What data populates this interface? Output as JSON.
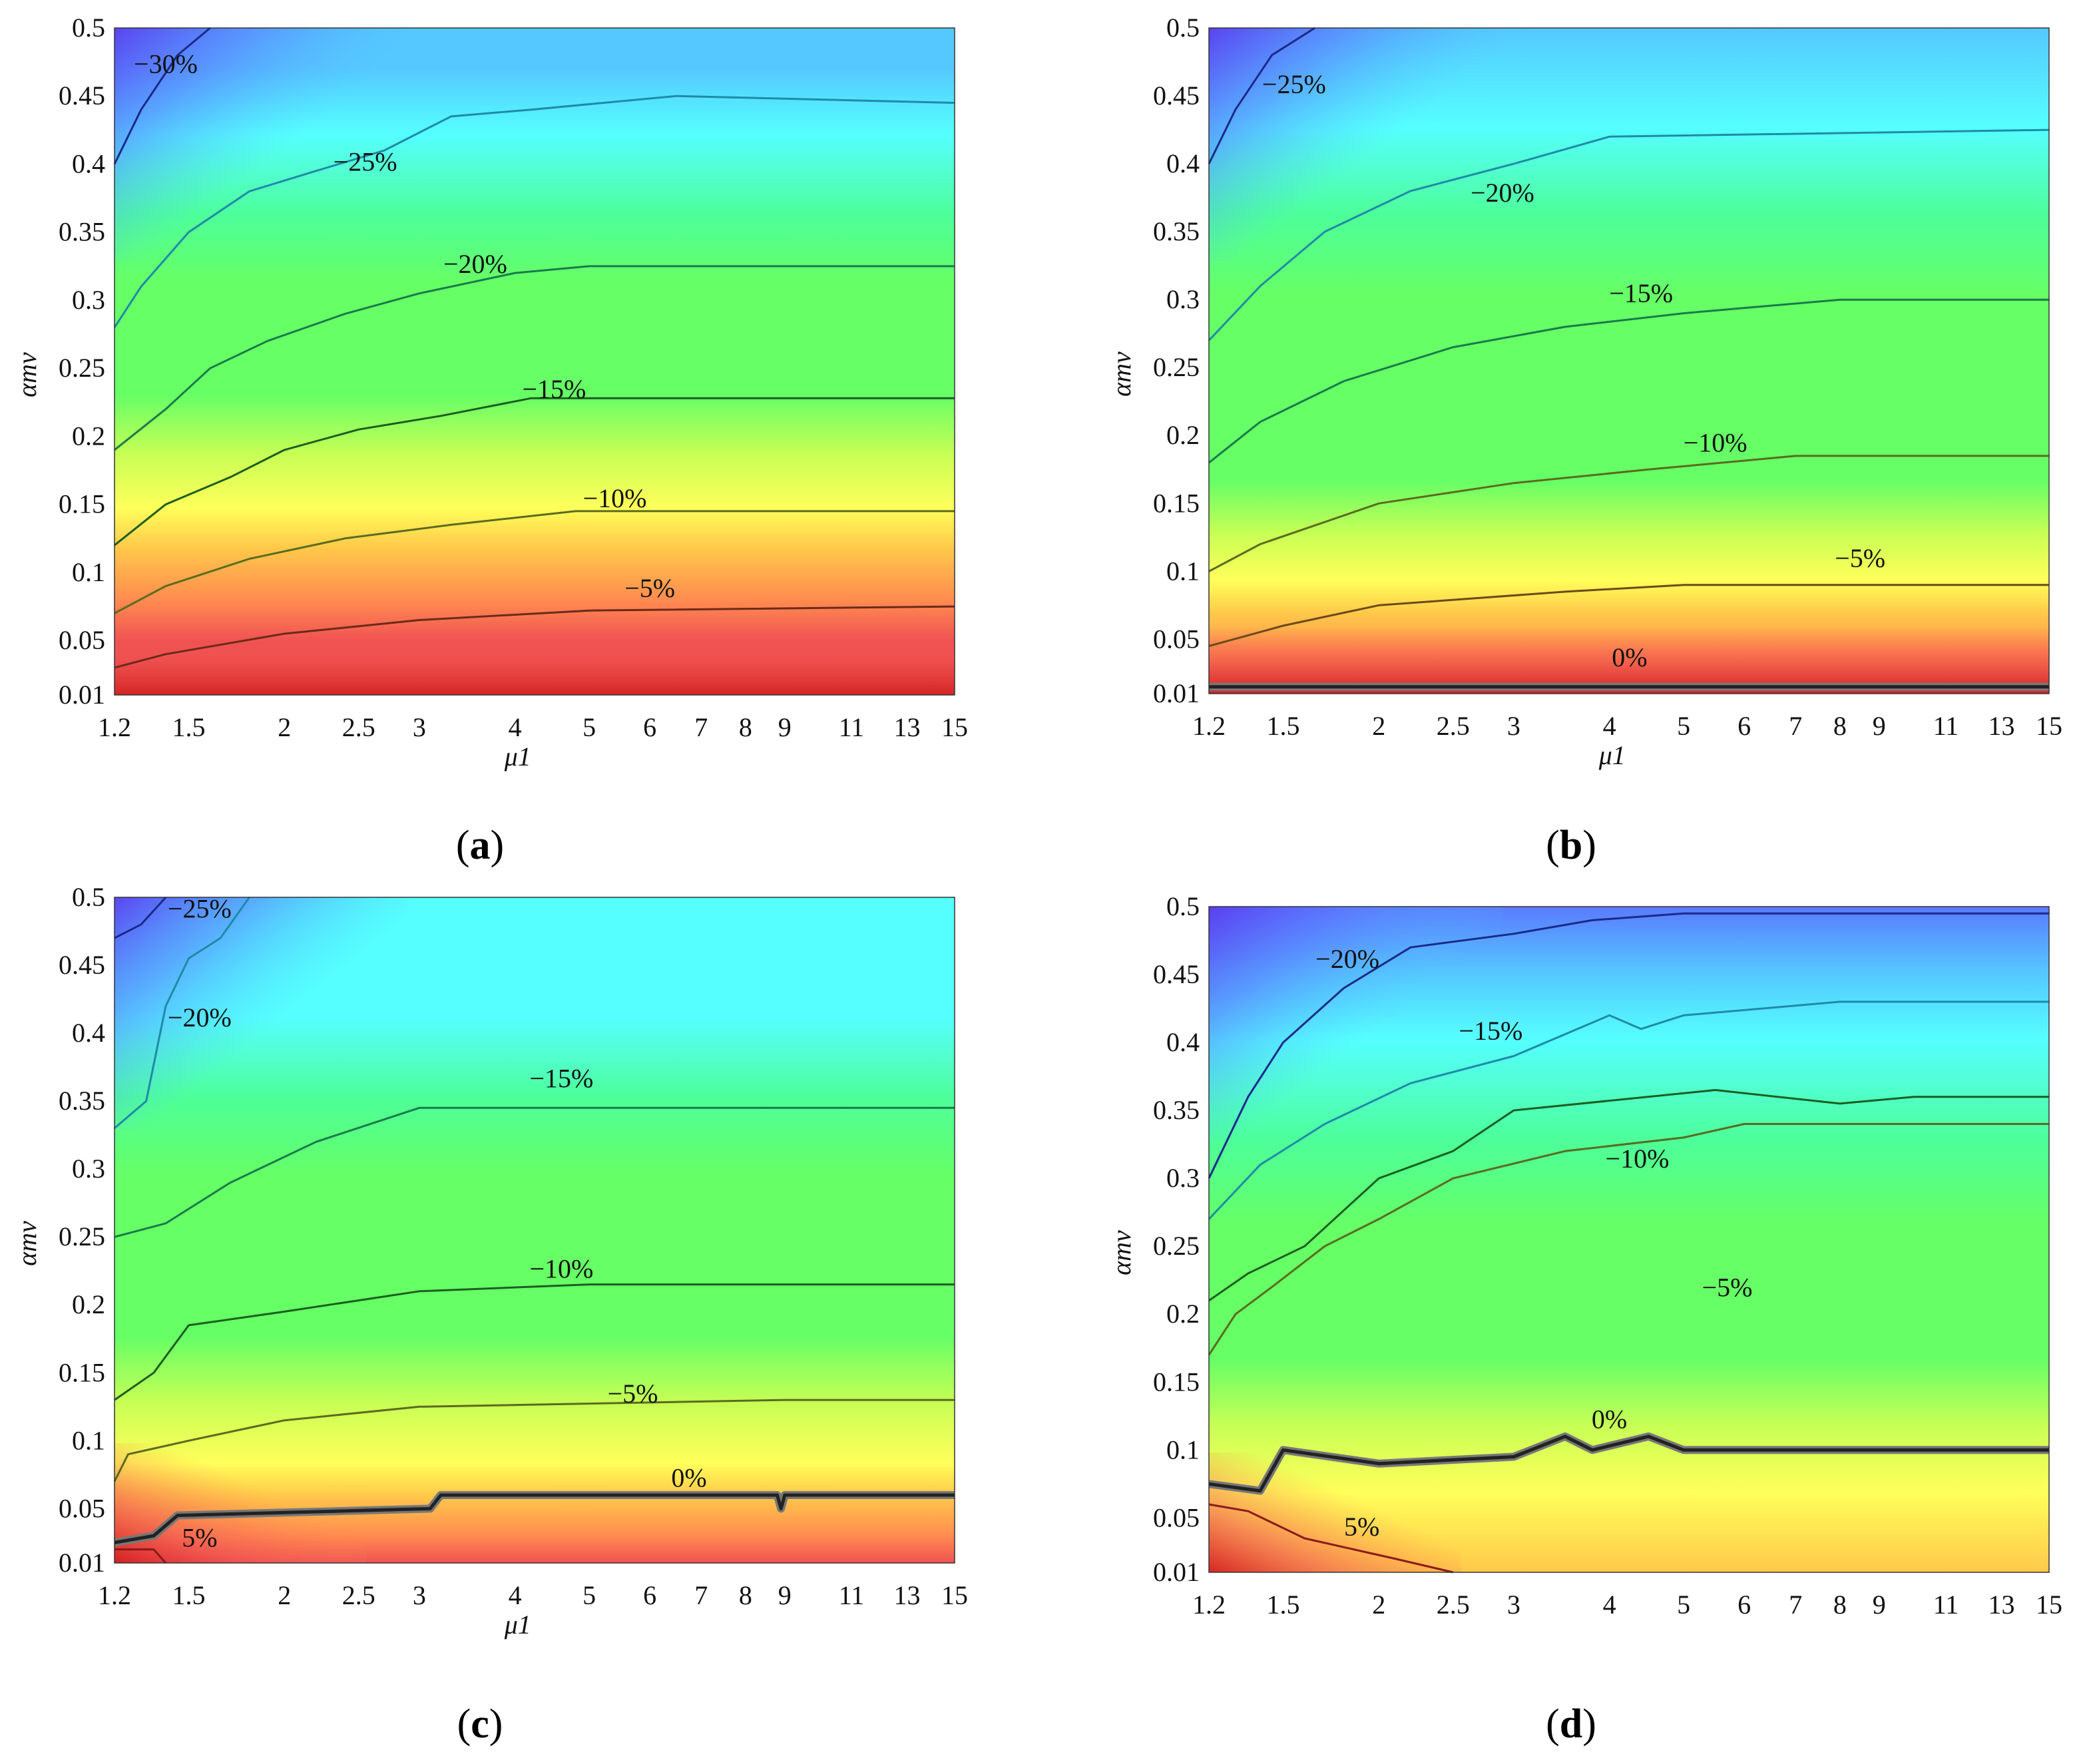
{
  "chart_data": [
    {
      "type": "heatmap",
      "panel": "a",
      "caption": {
        "open": "(",
        "letter": "a",
        "close": ")"
      },
      "xlabel": "μ1",
      "ylabel": "αmv",
      "x_ticks": [
        "1.2",
        "1.5",
        "2",
        "2.5",
        "3",
        "4",
        "5",
        "6",
        "7",
        "8",
        "9",
        "11",
        "13",
        "15"
      ],
      "y_ticks": [
        "0.01",
        "0.05",
        "0.1",
        "0.15",
        "0.2",
        "0.25",
        "0.3",
        "0.35",
        "0.4",
        "0.45",
        "0.5"
      ],
      "xlim": [
        1.2,
        15
      ],
      "ylim": [
        0.01,
        0.5
      ],
      "contours": [
        {
          "label": "−30%",
          "level": -30,
          "color": "#1b2a8a",
          "label_at": [
            1.4,
            0.467
          ],
          "points": [
            [
              1.2,
              0.4
            ],
            [
              1.3,
              0.44
            ],
            [
              1.45,
              0.48
            ],
            [
              1.6,
              0.5
            ]
          ]
        },
        {
          "label": "−25%",
          "level": -25,
          "color": "#1f8aa8",
          "label_at": [
            2.55,
            0.395
          ],
          "points": [
            [
              1.2,
              0.28
            ],
            [
              1.3,
              0.31
            ],
            [
              1.5,
              0.35
            ],
            [
              1.8,
              0.38
            ],
            [
              2.2,
              0.395
            ],
            [
              2.7,
              0.41
            ],
            [
              3.3,
              0.435
            ],
            [
              4.2,
              0.44
            ],
            [
              6.5,
              0.45
            ],
            [
              15,
              0.445
            ]
          ]
        },
        {
          "label": "−20%",
          "level": -20,
          "color": "#1a7a4a",
          "label_at": [
            3.55,
            0.32
          ],
          "points": [
            [
              1.2,
              0.19
            ],
            [
              1.4,
              0.22
            ],
            [
              1.6,
              0.25
            ],
            [
              1.9,
              0.27
            ],
            [
              2.4,
              0.29
            ],
            [
              3,
              0.305
            ],
            [
              4,
              0.32
            ],
            [
              5,
              0.325
            ],
            [
              15,
              0.325
            ]
          ]
        },
        {
          "label": "−15%",
          "level": -15,
          "color": "#1b5e20",
          "label_at": [
            4.5,
            0.228
          ],
          "points": [
            [
              1.2,
              0.12
            ],
            [
              1.4,
              0.15
            ],
            [
              1.7,
              0.17
            ],
            [
              2,
              0.19
            ],
            [
              2.5,
              0.205
            ],
            [
              3.2,
              0.215
            ],
            [
              4.2,
              0.228
            ],
            [
              15,
              0.228
            ]
          ]
        },
        {
          "label": "−10%",
          "level": -10,
          "color": "#5a6b1e",
          "label_at": [
            5.4,
            0.148
          ],
          "points": [
            [
              1.2,
              0.07
            ],
            [
              1.4,
              0.09
            ],
            [
              1.8,
              0.11
            ],
            [
              2.4,
              0.125
            ],
            [
              3.3,
              0.135
            ],
            [
              4.8,
              0.145
            ],
            [
              15,
              0.145
            ]
          ]
        },
        {
          "label": "−5%",
          "level": -5,
          "color": "#6b2a1a",
          "label_at": [
            6.0,
            0.082
          ],
          "points": [
            [
              1.2,
              0.03
            ],
            [
              1.4,
              0.04
            ],
            [
              2,
              0.055
            ],
            [
              3,
              0.065
            ],
            [
              5,
              0.072
            ],
            [
              15,
              0.075
            ]
          ]
        }
      ]
    },
    {
      "type": "heatmap",
      "panel": "b",
      "caption": {
        "open": "(",
        "letter": "b",
        "close": ")"
      },
      "xlabel": "μ1",
      "ylabel": "αmv",
      "x_ticks": [
        "1.2",
        "1.5",
        "2",
        "2.5",
        "3",
        "4",
        "5",
        "6",
        "7",
        "8",
        "9",
        "11",
        "13",
        "15"
      ],
      "y_ticks": [
        "0.01",
        "0.05",
        "0.1",
        "0.15",
        "0.2",
        "0.25",
        "0.3",
        "0.35",
        "0.4",
        "0.45",
        "0.5"
      ],
      "xlim": [
        1.2,
        15
      ],
      "ylim": [
        0.01,
        0.5
      ],
      "contours": [
        {
          "label": "−25%",
          "level": -25,
          "color": "#1b2a8a",
          "label_at": [
            1.55,
            0.452
          ],
          "points": [
            [
              1.2,
              0.4
            ],
            [
              1.3,
              0.44
            ],
            [
              1.45,
              0.48
            ],
            [
              1.65,
              0.5
            ]
          ]
        },
        {
          "label": "−20%",
          "level": -20,
          "color": "#1f8aa8",
          "label_at": [
            2.9,
            0.372
          ],
          "points": [
            [
              1.2,
              0.27
            ],
            [
              1.4,
              0.31
            ],
            [
              1.7,
              0.35
            ],
            [
              2.2,
              0.38
            ],
            [
              3,
              0.4
            ],
            [
              4,
              0.42
            ],
            [
              15,
              0.425
            ]
          ]
        },
        {
          "label": "−15%",
          "level": -15,
          "color": "#1a7a4a",
          "label_at": [
            4.4,
            0.298
          ],
          "points": [
            [
              1.2,
              0.18
            ],
            [
              1.4,
              0.21
            ],
            [
              1.8,
              0.24
            ],
            [
              2.5,
              0.265
            ],
            [
              3.5,
              0.28
            ],
            [
              5,
              0.29
            ],
            [
              8,
              0.3
            ],
            [
              15,
              0.3
            ]
          ]
        },
        {
          "label": "−10%",
          "level": -10,
          "color": "#5a6b1e",
          "label_at": [
            5.5,
            0.188
          ],
          "points": [
            [
              1.2,
              0.1
            ],
            [
              1.4,
              0.12
            ],
            [
              2,
              0.15
            ],
            [
              3,
              0.165
            ],
            [
              4.5,
              0.175
            ],
            [
              7,
              0.185
            ],
            [
              15,
              0.185
            ]
          ]
        },
        {
          "label": "−5%",
          "level": -5,
          "color": "#6b4a1a",
          "label_at": [
            8.5,
            0.103
          ],
          "points": [
            [
              1.2,
              0.045
            ],
            [
              1.5,
              0.06
            ],
            [
              2,
              0.075
            ],
            [
              3.5,
              0.085
            ],
            [
              5,
              0.09
            ],
            [
              15,
              0.09
            ]
          ]
        },
        {
          "label": "0%",
          "level": 0,
          "color": "#222222",
          "label_at": [
            4.25,
            0.03
          ],
          "points": [
            [
              1.2,
              0.015
            ],
            [
              15,
              0.015
            ]
          ]
        }
      ]
    },
    {
      "type": "heatmap",
      "panel": "c",
      "caption": {
        "open": "(",
        "letter": "c",
        "close": ")"
      },
      "xlabel": "μ1",
      "ylabel": "αmv",
      "x_ticks": [
        "1.2",
        "1.5",
        "2",
        "2.5",
        "3",
        "4",
        "5",
        "6",
        "7",
        "8",
        "9",
        "11",
        "13",
        "15"
      ],
      "y_ticks": [
        "0.01",
        "0.05",
        "0.1",
        "0.15",
        "0.2",
        "0.25",
        "0.3",
        "0.35",
        "0.4",
        "0.45",
        "0.5"
      ],
      "xlim": [
        1.2,
        15
      ],
      "ylim": [
        0.01,
        0.5
      ],
      "contours": [
        {
          "label": "−25%",
          "level": -25,
          "color": "#1b2a8a",
          "label_at": [
            1.55,
            0.485
          ],
          "points": [
            [
              1.2,
              0.47
            ],
            [
              1.3,
              0.48
            ],
            [
              1.4,
              0.5
            ]
          ]
        },
        {
          "label": "−20%",
          "level": -20,
          "color": "#1f8aa8",
          "label_at": [
            1.55,
            0.405
          ],
          "points": [
            [
              1.2,
              0.33
            ],
            [
              1.32,
              0.35
            ],
            [
              1.4,
              0.42
            ],
            [
              1.5,
              0.455
            ],
            [
              1.65,
              0.47
            ],
            [
              1.8,
              0.5
            ]
          ]
        },
        {
          "label": "−15%",
          "level": -15,
          "color": "#1a7a4a",
          "label_at": [
            4.6,
            0.36
          ],
          "points": [
            [
              1.2,
              0.25
            ],
            [
              1.4,
              0.26
            ],
            [
              1.7,
              0.29
            ],
            [
              2.2,
              0.32
            ],
            [
              3,
              0.345
            ],
            [
              15,
              0.345
            ]
          ]
        },
        {
          "label": "−10%",
          "level": -10,
          "color": "#1b5e20",
          "label_at": [
            4.6,
            0.22
          ],
          "points": [
            [
              1.2,
              0.13
            ],
            [
              1.35,
              0.15
            ],
            [
              1.5,
              0.185
            ],
            [
              2,
              0.195
            ],
            [
              3,
              0.21
            ],
            [
              5,
              0.215
            ],
            [
              15,
              0.215
            ]
          ]
        },
        {
          "label": "−5%",
          "level": -5,
          "color": "#5a6b1e",
          "label_at": [
            5.7,
            0.128
          ],
          "points": [
            [
              1.2,
              0.07
            ],
            [
              1.25,
              0.09
            ],
            [
              1.5,
              0.1
            ],
            [
              2,
              0.115
            ],
            [
              3,
              0.125
            ],
            [
              9,
              0.13
            ],
            [
              15,
              0.13
            ]
          ]
        },
        {
          "label": "0%",
          "level": 0,
          "color": "#222222",
          "label_at": [
            6.75,
            0.066
          ],
          "points": [
            [
              1.2,
              0.025
            ],
            [
              1.35,
              0.03
            ],
            [
              1.45,
              0.045
            ],
            [
              3.1,
              0.05
            ],
            [
              3.2,
              0.06
            ],
            [
              8.8,
              0.06
            ],
            [
              8.9,
              0.05
            ],
            [
              9,
              0.06
            ],
            [
              15,
              0.06
            ]
          ]
        },
        {
          "label": "5%",
          "level": 5,
          "color": "#8a1a1a",
          "label_at": [
            1.55,
            0.022
          ],
          "points": [
            [
              1.2,
              0.02
            ],
            [
              1.35,
              0.02
            ],
            [
              1.4,
              0.01
            ]
          ]
        }
      ]
    },
    {
      "type": "heatmap",
      "panel": "d",
      "caption": {
        "open": "(",
        "letter": "d",
        "close": ")"
      },
      "xlabel": "",
      "ylabel": "αmv",
      "x_ticks": [
        "1.2",
        "1.5",
        "2",
        "2.5",
        "3",
        "4",
        "5",
        "6",
        "7",
        "8",
        "9",
        "11",
        "13",
        "15"
      ],
      "y_ticks": [
        "0.01",
        "0.05",
        "0.1",
        "0.15",
        "0.2",
        "0.25",
        "0.3",
        "0.35",
        "0.4",
        "0.45",
        "0.5"
      ],
      "xlim": [
        1.2,
        15
      ],
      "ylim": [
        0.01,
        0.5
      ],
      "contours": [
        {
          "label": "−20%",
          "level": -20,
          "color": "#1b2a8a",
          "label_at": [
            1.82,
            0.455
          ],
          "points": [
            [
              1.2,
              0.3
            ],
            [
              1.35,
              0.36
            ],
            [
              1.5,
              0.4
            ],
            [
              1.8,
              0.44
            ],
            [
              2.2,
              0.47
            ],
            [
              3,
              0.48
            ],
            [
              3.8,
              0.49
            ],
            [
              5,
              0.495
            ],
            [
              15,
              0.495
            ]
          ]
        },
        {
          "label": "−15%",
          "level": -15,
          "color": "#1f8aa8",
          "label_at": [
            2.8,
            0.402
          ],
          "points": [
            [
              1.2,
              0.27
            ],
            [
              1.4,
              0.31
            ],
            [
              1.7,
              0.34
            ],
            [
              2.2,
              0.37
            ],
            [
              3,
              0.39
            ],
            [
              4,
              0.42
            ],
            [
              4.4,
              0.41
            ],
            [
              5,
              0.42
            ],
            [
              8,
              0.43
            ],
            [
              15,
              0.43
            ]
          ]
        },
        {
          "label": "−10%",
          "level": -10,
          "color": "#1b5e20",
          "label_at": [
            4.35,
            0.308
          ],
          "points": [
            [
              1.2,
              0.21
            ],
            [
              1.35,
              0.23
            ],
            [
              1.6,
              0.25
            ],
            [
              2,
              0.3
            ],
            [
              2.5,
              0.32
            ],
            [
              3,
              0.35
            ],
            [
              5.5,
              0.365
            ],
            [
              8,
              0.355
            ],
            [
              10,
              0.36
            ],
            [
              15,
              0.36
            ]
          ]
        },
        {
          "label": "−5%",
          "level": -5,
          "color": "#5a6b1e",
          "label_at": [
            5.7,
            0.213
          ],
          "points": [
            [
              1.2,
              0.17
            ],
            [
              1.3,
              0.2
            ],
            [
              1.45,
              0.22
            ],
            [
              1.7,
              0.25
            ],
            [
              2,
              0.27
            ],
            [
              2.5,
              0.3
            ],
            [
              3.5,
              0.32
            ],
            [
              5,
              0.33
            ],
            [
              6,
              0.34
            ],
            [
              15,
              0.34
            ]
          ]
        },
        {
          "label": "0%",
          "level": 0,
          "color": "#222222",
          "label_at": [
            4.0,
            0.116
          ],
          "points": [
            [
              1.2,
              0.075
            ],
            [
              1.4,
              0.07
            ],
            [
              1.5,
              0.1
            ],
            [
              2,
              0.09
            ],
            [
              3,
              0.095
            ],
            [
              3.5,
              0.11
            ],
            [
              3.8,
              0.1
            ],
            [
              4.5,
              0.11
            ],
            [
              5,
              0.1
            ],
            [
              15,
              0.1
            ]
          ]
        },
        {
          "label": "5%",
          "level": 5,
          "color": "#8a1a1a",
          "label_at": [
            1.9,
            0.037
          ],
          "points": [
            [
              1.2,
              0.06
            ],
            [
              1.35,
              0.055
            ],
            [
              1.6,
              0.035
            ],
            [
              2.1,
              0.02
            ],
            [
              2.5,
              0.01
            ]
          ]
        }
      ]
    }
  ],
  "colormap": [
    "#d21f1f",
    "#f05252",
    "#ff8a50",
    "#ffc84a",
    "#ffff5a",
    "#c8ff55",
    "#66ff66",
    "#4dff9a",
    "#55ffff",
    "#55c8ff",
    "#5a7aff",
    "#5a3cf0"
  ]
}
